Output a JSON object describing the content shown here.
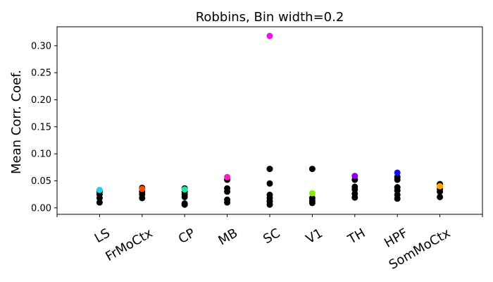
{
  "chart_data": {
    "type": "scatter",
    "title": "Robbins, Bin width=0.2",
    "xlabel": "",
    "ylabel": "Mean Corr. Coef.",
    "categories": [
      "LS",
      "FrMoCtx",
      "CP",
      "MB",
      "SC",
      "V1",
      "TH",
      "HPF",
      "SomMoCtx"
    ],
    "ylim": [
      -0.012,
      0.335
    ],
    "yticks": [
      "0.00",
      "0.05",
      "0.10",
      "0.15",
      "0.20",
      "0.25",
      "0.30"
    ],
    "grid": false,
    "points": [
      {
        "category": "LS",
        "values": [
          0.01,
          0.018,
          0.025,
          0.03
        ],
        "highlight": 0.033,
        "highlight_color": "#1fd3f0"
      },
      {
        "category": "FrMoCtx",
        "values": [
          0.018,
          0.025,
          0.03,
          0.037
        ],
        "highlight": 0.035,
        "highlight_color": "#ff4500"
      },
      {
        "category": "CP",
        "values": [
          0.006,
          0.008,
          0.02,
          0.025,
          0.03,
          0.036
        ],
        "highlight": 0.034,
        "highlight_color": "#1ae8a0"
      },
      {
        "category": "MB",
        "values": [
          0.01,
          0.015,
          0.03,
          0.036,
          0.052
        ],
        "highlight": 0.057,
        "highlight_color": "#ff1ac6"
      },
      {
        "category": "SC",
        "values": [
          0.006,
          0.012,
          0.018,
          0.024,
          0.045,
          0.072
        ],
        "highlight": 0.318,
        "highlight_color": "#ee10ee"
      },
      {
        "category": "V1",
        "values": [
          0.009,
          0.013,
          0.018,
          0.072
        ],
        "highlight": 0.027,
        "highlight_color": "#88ee00"
      },
      {
        "category": "TH",
        "values": [
          0.019,
          0.026,
          0.034,
          0.039,
          0.052
        ],
        "highlight": 0.059,
        "highlight_color": "#8a00ee"
      },
      {
        "category": "HPF",
        "values": [
          0.017,
          0.024,
          0.032,
          0.038,
          0.052,
          0.057
        ],
        "highlight": 0.065,
        "highlight_color": "#1010ee"
      },
      {
        "category": "SomMoCtx",
        "values": [
          0.02,
          0.03,
          0.035,
          0.044
        ],
        "highlight": 0.04,
        "highlight_color": "#ffa500"
      }
    ],
    "base_color": "#000000"
  }
}
